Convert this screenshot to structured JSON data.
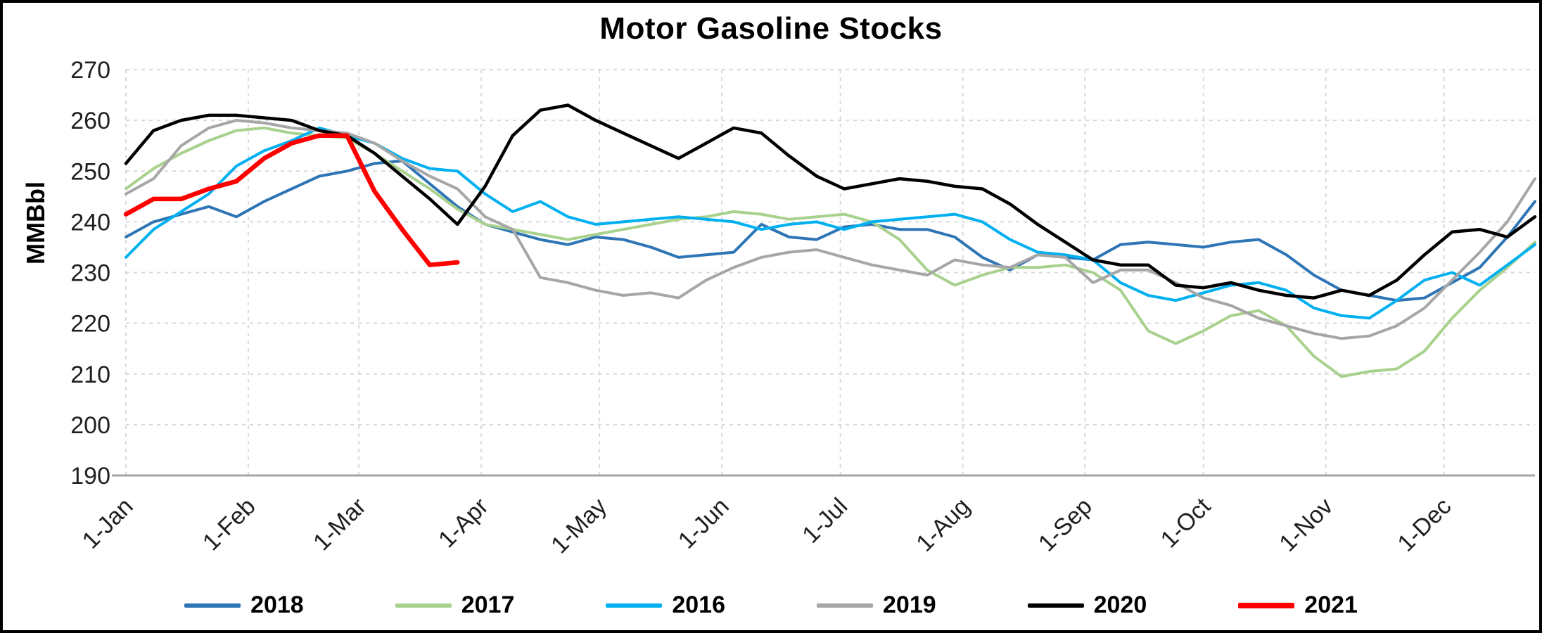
{
  "page": {
    "background": "#ffffff",
    "border_color": "#000000"
  },
  "chart_data": {
    "type": "line",
    "title": "Motor Gasoline Stocks",
    "ylabel": "MMBbl",
    "xlabel": "",
    "ylim": [
      190,
      270
    ],
    "yticks": [
      190,
      200,
      210,
      220,
      230,
      240,
      250,
      260,
      270
    ],
    "grid": "dashed",
    "gridline_color": "#d9d9d9",
    "axis_line_color": "#a6a6a6",
    "tick_label_color": "#1f1f1f",
    "legend_position": "bottom",
    "x_unit": "week-of-year",
    "xticks": [
      {
        "label": "1-Jan",
        "week": 0
      },
      {
        "label": "1-Feb",
        "week": 4.43
      },
      {
        "label": "1-Mar",
        "week": 8.43
      },
      {
        "label": "1-Apr",
        "week": 12.86
      },
      {
        "label": "1-May",
        "week": 17.14
      },
      {
        "label": "1-Jun",
        "week": 21.57
      },
      {
        "label": "1-Jul",
        "week": 25.86
      },
      {
        "label": "1-Aug",
        "week": 30.29
      },
      {
        "label": "1-Sep",
        "week": 34.71
      },
      {
        "label": "1-Oct",
        "week": 39.0
      },
      {
        "label": "1-Nov",
        "week": 43.43
      },
      {
        "label": "1-Dec",
        "week": 47.71
      }
    ],
    "series": [
      {
        "name": "2018",
        "color": "#2E75B6",
        "width": 4,
        "values": [
          237,
          240,
          241.5,
          243,
          241,
          244,
          246.5,
          249,
          250,
          251.5,
          252,
          247.5,
          243,
          239.5,
          238,
          236.5,
          235.5,
          237,
          236.5,
          235,
          233,
          233.5,
          234,
          239.5,
          237,
          236.5,
          239,
          239.5,
          238.5,
          238.5,
          237,
          233,
          230.5,
          233.5,
          233,
          232.5,
          235.5,
          236,
          235.5,
          235,
          236,
          236.5,
          233.5,
          229.5,
          226.5,
          225.5,
          224.5,
          225,
          228,
          231,
          237,
          244
        ]
      },
      {
        "name": "2017",
        "color": "#A9D18E",
        "width": 4,
        "values": [
          246.5,
          250.5,
          253.5,
          256,
          258,
          258.5,
          257.5,
          257,
          256.5,
          253.5,
          250,
          246.5,
          242.5,
          239.5,
          238.5,
          237.5,
          236.5,
          237.5,
          238.5,
          239.5,
          240.5,
          241,
          242,
          241.5,
          240.5,
          241,
          241.5,
          240,
          236.5,
          230.5,
          227.5,
          229.5,
          231,
          231,
          231.5,
          230,
          226.5,
          218.5,
          216,
          218.5,
          221.5,
          222.5,
          219.5,
          213.5,
          209.5,
          210.5,
          211,
          214.5,
          221,
          226.5,
          231,
          236
        ]
      },
      {
        "name": "2016",
        "color": "#00B0F0",
        "width": 4,
        "values": [
          233,
          238.5,
          242,
          245.5,
          251,
          254,
          256,
          258.5,
          257,
          255.5,
          252.5,
          250.5,
          250,
          245.5,
          242,
          244,
          241,
          239.5,
          240,
          240.5,
          241,
          240.5,
          240,
          238.5,
          239.5,
          240,
          238.5,
          240,
          240.5,
          241,
          241.5,
          240,
          236.5,
          234,
          233.5,
          232.5,
          228,
          225.5,
          224.5,
          226,
          227.5,
          228,
          226.5,
          223,
          221.5,
          221,
          224.5,
          228.5,
          230,
          227.5,
          231.5,
          235.5
        ]
      },
      {
        "name": "2019",
        "color": "#A6A6A6",
        "width": 4,
        "values": [
          245.5,
          248.5,
          255,
          258.5,
          260,
          259.5,
          258.5,
          258,
          257.5,
          255.5,
          252,
          249,
          246.5,
          241,
          238.5,
          229,
          228,
          226.5,
          225.5,
          226,
          225,
          228.5,
          231,
          233,
          234,
          234.5,
          233,
          231.5,
          230.5,
          229.5,
          232.5,
          231.5,
          231,
          233.5,
          233,
          228,
          230.5,
          230.5,
          228,
          225,
          223.5,
          221,
          219.5,
          218,
          217,
          217.5,
          219.5,
          223,
          228.5,
          234,
          240,
          248.5
        ]
      },
      {
        "name": "2020",
        "color": "#000000",
        "width": 4.5,
        "values": [
          251.5,
          258,
          260,
          261,
          261,
          260.5,
          260,
          258,
          257,
          253.5,
          249,
          244.5,
          239.5,
          247,
          257,
          262,
          263,
          260,
          257.5,
          255,
          252.5,
          255.5,
          258.5,
          257.5,
          253,
          249,
          246.5,
          247.5,
          248.5,
          248,
          247,
          246.5,
          243.5,
          239.5,
          236,
          232.5,
          231.5,
          231.5,
          227.5,
          227,
          228,
          226.5,
          225.5,
          225,
          226.5,
          225.5,
          228.5,
          233.5,
          238,
          238.5,
          237,
          241
        ]
      },
      {
        "name": "2021",
        "color": "#FF0000",
        "width": 6.5,
        "values": [
          241.5,
          244.5,
          244.5,
          246.5,
          248,
          252.5,
          255.5,
          257,
          257,
          246,
          238.5,
          231.5,
          232
        ]
      }
    ]
  }
}
